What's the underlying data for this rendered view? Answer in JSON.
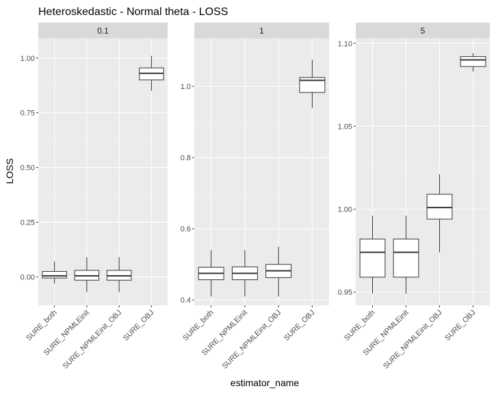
{
  "chart_data": {
    "type": "boxplot",
    "title": "Heteroskedastic - Normal theta - LOSS",
    "xlabel": "estimator_name",
    "ylabel": "LOSS",
    "facet_type": "free_y",
    "categories": [
      "SURE_both",
      "SURE_NPMLEinit",
      "SURE_NPMLEinit_OBJ",
      "SURE_OBJ"
    ],
    "panels": [
      {
        "label": "0.1",
        "ylim": [
          -0.13,
          1.09
        ],
        "yticks": [
          0.0,
          0.25,
          0.5,
          0.75,
          1.0
        ],
        "yticklabels": [
          "0.00",
          "0.25",
          "0.50",
          "0.75",
          "1.00"
        ],
        "boxes": [
          {
            "category": "SURE_both",
            "min": -0.03,
            "q1": -0.005,
            "median": 0.005,
            "q3": 0.025,
            "max": 0.07
          },
          {
            "category": "SURE_NPMLEinit",
            "min": -0.07,
            "q1": -0.015,
            "median": 0.005,
            "q3": 0.03,
            "max": 0.09
          },
          {
            "category": "SURE_NPMLEinit_OBJ",
            "min": -0.07,
            "q1": -0.015,
            "median": 0.005,
            "q3": 0.03,
            "max": 0.09
          },
          {
            "category": "SURE_OBJ",
            "min": 0.85,
            "q1": 0.9,
            "median": 0.93,
            "q3": 0.955,
            "max": 1.01
          }
        ]
      },
      {
        "label": "1",
        "ylim": [
          0.385,
          1.135
        ],
        "yticks": [
          0.4,
          0.6,
          0.8,
          1.0
        ],
        "yticklabels": [
          "0.4",
          "0.6",
          "0.8",
          "1.0"
        ],
        "boxes": [
          {
            "category": "SURE_both",
            "min": 0.41,
            "q1": 0.457,
            "median": 0.475,
            "q3": 0.492,
            "max": 0.54
          },
          {
            "category": "SURE_NPMLEinit",
            "min": 0.41,
            "q1": 0.457,
            "median": 0.475,
            "q3": 0.493,
            "max": 0.54
          },
          {
            "category": "SURE_NPMLEinit_OBJ",
            "min": 0.41,
            "q1": 0.463,
            "median": 0.482,
            "q3": 0.5,
            "max": 0.55
          },
          {
            "category": "SURE_OBJ",
            "min": 0.94,
            "q1": 0.983,
            "median": 1.017,
            "q3": 1.025,
            "max": 1.075
          }
        ]
      },
      {
        "label": "5",
        "ylim": [
          0.942,
          1.103
        ],
        "yticks": [
          0.95,
          1.0,
          1.05,
          1.1
        ],
        "yticklabels": [
          "0.95",
          "1.00",
          "1.05",
          "1.10"
        ],
        "boxes": [
          {
            "category": "SURE_both",
            "min": 0.949,
            "q1": 0.959,
            "median": 0.974,
            "q3": 0.982,
            "max": 0.996
          },
          {
            "category": "SURE_NPMLEinit",
            "min": 0.949,
            "q1": 0.959,
            "median": 0.974,
            "q3": 0.982,
            "max": 0.996
          },
          {
            "category": "SURE_NPMLEinit_OBJ",
            "min": 0.974,
            "q1": 0.994,
            "median": 1.001,
            "q3": 1.009,
            "max": 1.021
          },
          {
            "category": "SURE_OBJ",
            "min": 1.083,
            "q1": 1.086,
            "median": 1.09,
            "q3": 1.092,
            "max": 1.094
          }
        ]
      }
    ],
    "colors": {
      "panel_bg": "#ebebeb",
      "strip_bg": "#d9d9d9",
      "grid_major": "#ffffff",
      "box_fill": "#ffffff",
      "box_line": "#333333"
    },
    "grid": true,
    "legend": "none"
  }
}
